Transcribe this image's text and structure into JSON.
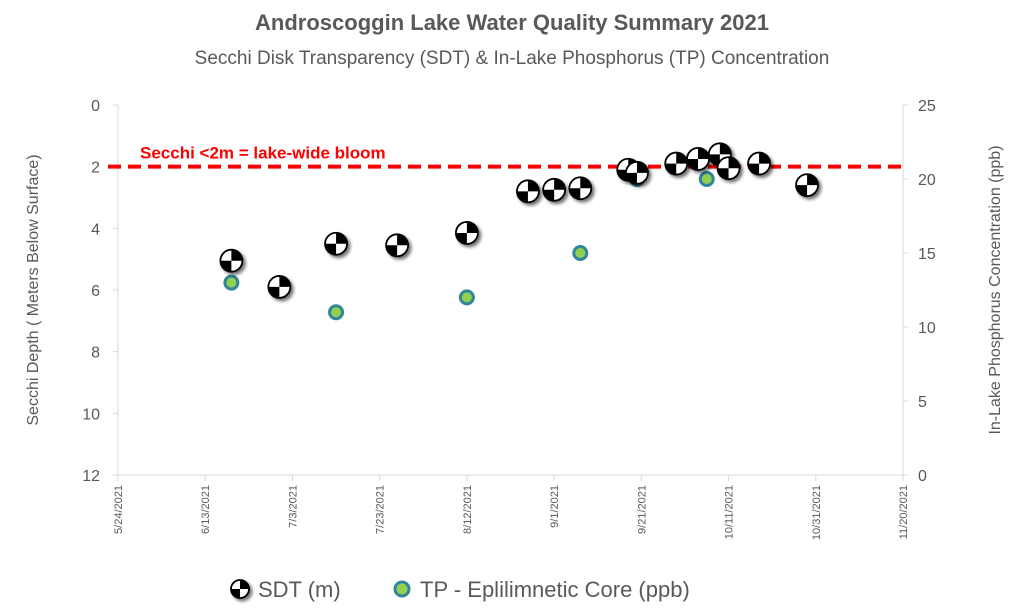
{
  "chart_data": {
    "type": "scatter",
    "title": "Androscoggin Lake Water Quality Summary 2021",
    "subtitle": "Secchi Disk Transparency (SDT) & In-Lake Phosphorus (TP) Concentration",
    "ylabel": "Secchi Depth ( Meters Below Surface)",
    "y2label": "In-Lake Phosphorus Concentration (ppb)",
    "x_ticks": [
      "5/24/2021",
      "6/13/2021",
      "7/3/2021",
      "7/23/2021",
      "8/12/2021",
      "9/1/2021",
      "9/21/2021",
      "10/11/2021",
      "10/31/2021",
      "11/20/2021"
    ],
    "xlim": [
      "2021-05-24",
      "2021-11-20"
    ],
    "ylim": [
      0,
      12
    ],
    "y_reversed": true,
    "y_ticks": [
      "0",
      "2",
      "4",
      "6",
      "8",
      "10",
      "12"
    ],
    "y2lim": [
      0,
      25
    ],
    "y2_ticks": [
      "0",
      "5",
      "10",
      "15",
      "20",
      "25"
    ],
    "grid": false,
    "legend_position": "bottom",
    "annotation": {
      "text": "Secchi <2m = lake-wide bloom",
      "y": 2,
      "color": "#ff0000"
    },
    "series": [
      {
        "name": "SDT (m)",
        "axis": "left",
        "marker": "secchi-disk",
        "points": [
          {
            "x": "2021-06-19",
            "y": 5.05
          },
          {
            "x": "2021-06-30",
            "y": 5.9
          },
          {
            "x": "2021-07-13",
            "y": 4.5
          },
          {
            "x": "2021-07-27",
            "y": 4.55
          },
          {
            "x": "2021-08-12",
            "y": 4.15
          },
          {
            "x": "2021-08-26",
            "y": 2.8
          },
          {
            "x": "2021-09-01",
            "y": 2.75
          },
          {
            "x": "2021-09-07",
            "y": 2.7
          },
          {
            "x": "2021-09-18",
            "y": 2.1
          },
          {
            "x": "2021-09-20",
            "y": 2.2
          },
          {
            "x": "2021-09-29",
            "y": 1.9
          },
          {
            "x": "2021-10-04",
            "y": 1.75
          },
          {
            "x": "2021-10-09",
            "y": 1.6
          },
          {
            "x": "2021-10-11",
            "y": 2.05
          },
          {
            "x": "2021-10-18",
            "y": 1.9
          },
          {
            "x": "2021-10-29",
            "y": 2.6
          }
        ]
      },
      {
        "name": "TP - Eplilimnetic Core (ppb)",
        "axis": "right",
        "marker": "circle",
        "color": "#92d050",
        "stroke": "#31859c",
        "points": [
          {
            "x": "2021-06-19",
            "y": 13
          },
          {
            "x": "2021-07-13",
            "y": 11
          },
          {
            "x": "2021-08-12",
            "y": 12
          },
          {
            "x": "2021-09-07",
            "y": 15
          },
          {
            "x": "2021-09-20",
            "y": 20
          },
          {
            "x": "2021-10-06",
            "y": 20
          }
        ]
      }
    ]
  }
}
